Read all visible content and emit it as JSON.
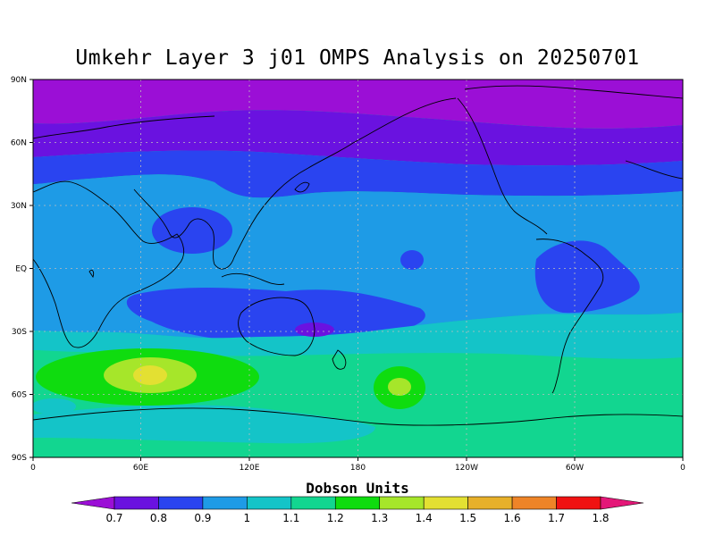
{
  "title": "Umkehr Layer 3 j01 OMPS Analysis on 20250701",
  "map": {
    "lat_labels": [
      "90N",
      "60N",
      "30N",
      "EQ",
      "30S",
      "60S",
      "90S"
    ],
    "lon_labels": [
      "0",
      "60E",
      "120E",
      "180",
      "120W",
      "60W",
      "0"
    ]
  },
  "colorbar": {
    "title": "Dobson Units",
    "labels": [
      "0.7",
      "0.8",
      "0.9",
      "1",
      "1.1",
      "1.2",
      "1.3",
      "1.4",
      "1.5",
      "1.6",
      "1.7",
      "1.8"
    ],
    "colors": [
      "#9b0fd6",
      "#6a12e0",
      "#2a44f0",
      "#1e9be6",
      "#14c4c8",
      "#12d690",
      "#0fdc0f",
      "#a6e62a",
      "#e3e032",
      "#e7b02a",
      "#ee8428",
      "#f01212",
      "#e41778"
    ]
  },
  "chart_data": {
    "type": "heatmap",
    "title": "Umkehr Layer 3 j01 OMPS Analysis on 20250701",
    "units": "Dobson Units",
    "x_range": [
      0,
      360
    ],
    "y_range": [
      -90,
      90
    ],
    "levels": [
      0.7,
      0.8,
      0.9,
      1.0,
      1.1,
      1.2,
      1.3,
      1.4,
      1.5,
      1.6,
      1.7,
      1.8
    ],
    "regions": [
      {
        "lat_range": [
          70,
          90
        ],
        "value": 0.75
      },
      {
        "lat_range": [
          55,
          70
        ],
        "value": 0.8
      },
      {
        "lat_range": [
          35,
          55
        ],
        "value": 0.85
      },
      {
        "lat_range": [
          -15,
          35
        ],
        "value": 1.0
      },
      {
        "lat_range": [
          -38,
          -15
        ],
        "value": 0.9
      },
      {
        "lat_range": [
          -50,
          -38
        ],
        "value": 1.15
      },
      {
        "lat_range": [
          -90,
          -50
        ],
        "value": 1.2
      },
      {
        "center": [
          63,
          -54
        ],
        "value": 1.45
      },
      {
        "center": [
          187,
          -58
        ],
        "value": 1.35
      }
    ]
  }
}
